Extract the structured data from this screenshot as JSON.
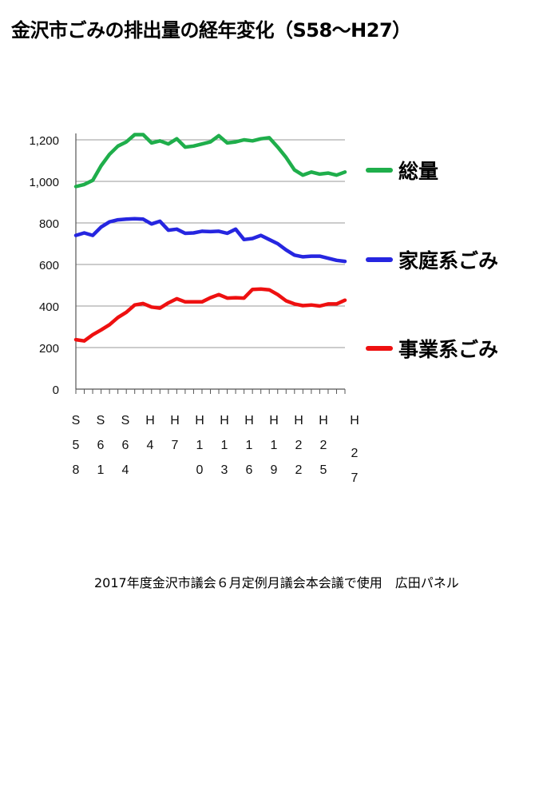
{
  "title": "金沢市ごみの排出量の経年変化（S58～H27）",
  "caption": "2017年度金沢市議会６月定例月議会本会議で使用　広田パネル",
  "chart_data": {
    "type": "line",
    "title": "金沢市ごみの排出量の経年変化（S58～H27）",
    "xlabel": "",
    "ylabel": "",
    "ylim": [
      0,
      1200
    ],
    "yticks": [
      0,
      200,
      400,
      600,
      800,
      1000,
      1200
    ],
    "ytick_labels": [
      "0",
      "200",
      "400",
      "600",
      "800",
      "1,000",
      "1,200"
    ],
    "grid": true,
    "legend_placement": "right",
    "categories": [
      "S58",
      "S59",
      "S60",
      "S61",
      "S62",
      "S63",
      "S64",
      "H2",
      "H3",
      "H4",
      "H5",
      "H6",
      "H7",
      "H8",
      "H9",
      "H10",
      "H11",
      "H12",
      "H13",
      "H14",
      "H15",
      "H16",
      "H17",
      "H18",
      "H19",
      "H20",
      "H21",
      "H22",
      "H23",
      "H24",
      "H25",
      "H26",
      "H27"
    ],
    "tick_labels": [
      "S58",
      "S61",
      "S64",
      "H4",
      "H7",
      "H10",
      "H13",
      "H16",
      "H19",
      "H22",
      "H25",
      "H27"
    ],
    "tick_label_chars": [
      [
        "S",
        "5",
        "8"
      ],
      [
        "S",
        "6",
        "1"
      ],
      [
        "S",
        "6",
        "4"
      ],
      [
        "H",
        "4"
      ],
      [
        "H",
        "7"
      ],
      [
        "H",
        "1",
        "0"
      ],
      [
        "H",
        "1",
        "3"
      ],
      [
        "H",
        "1",
        "6"
      ],
      [
        "H",
        "1",
        "9"
      ],
      [
        "H",
        "2",
        "2"
      ],
      [
        "H",
        "2",
        "5"
      ],
      [
        "H",
        "2",
        "7"
      ]
    ],
    "series": [
      {
        "name": "総量",
        "color": "#1fae4b",
        "values": [
          975,
          985,
          1005,
          1075,
          1130,
          1170,
          1190,
          1225,
          1225,
          1185,
          1195,
          1180,
          1205,
          1165,
          1170,
          1180,
          1190,
          1220,
          1185,
          1190,
          1200,
          1195,
          1205,
          1210,
          1165,
          1115,
          1055,
          1030,
          1045,
          1035,
          1040,
          1030,
          1045
        ]
      },
      {
        "name": "家庭系ごみ",
        "color": "#2626e0",
        "values": [
          740,
          752,
          740,
          780,
          805,
          815,
          818,
          820,
          818,
          795,
          808,
          765,
          770,
          750,
          752,
          760,
          758,
          760,
          750,
          770,
          720,
          725,
          740,
          720,
          700,
          670,
          645,
          637,
          640,
          640,
          630,
          620,
          615
        ]
      },
      {
        "name": "事業系ごみ",
        "color": "#ee1010",
        "values": [
          238,
          232,
          262,
          285,
          310,
          345,
          370,
          405,
          412,
          395,
          390,
          415,
          435,
          420,
          420,
          420,
          440,
          455,
          438,
          440,
          438,
          480,
          482,
          478,
          455,
          425,
          410,
          402,
          405,
          400,
          410,
          410,
          428
        ]
      }
    ]
  }
}
